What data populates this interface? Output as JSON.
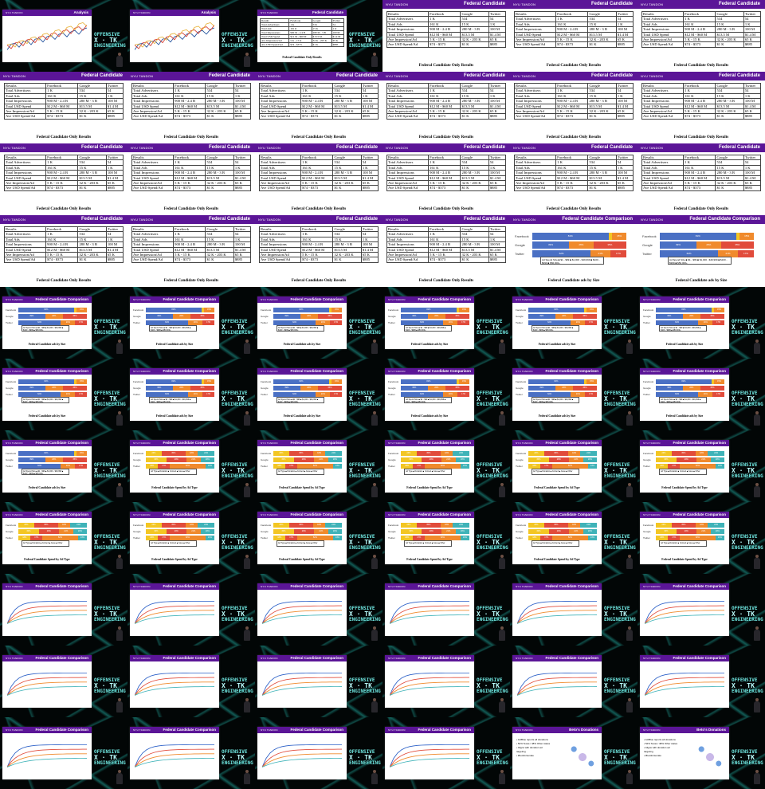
{
  "colors": {
    "header_purple": "#5b1597",
    "stage_teal": "#1ea096",
    "bar_blue": "#4a70c4",
    "bar_orange": "#f08a2c",
    "bar_yellow": "#f3c623",
    "bar_red": "#e14b3b",
    "bar_teal": "#3fb3b8"
  },
  "slide_kinds": {
    "analysis": {
      "title": "Analysis",
      "logo": "NYU TANDON"
    },
    "federal_table": {
      "title": "Federal Candidate",
      "logo": "NYU TANDON",
      "caption": "Federal Candidate Only Results",
      "rows": [
        [
          "Results",
          "Facebook",
          "Google",
          "Twitter"
        ],
        [
          "Total Advertisers",
          "1 K",
          "534",
          "54"
        ],
        [
          "Total Ads",
          "161 K",
          "15 K",
          "1 K"
        ],
        [
          "Total Impressions",
          "900 M - 2.4 B",
          "280 M - 3 B",
          "100 M"
        ],
        [
          "Total USD Spend",
          "$12 M - $60 M",
          "$13.5 M",
          "$1.4 M"
        ],
        [
          "Ave Impression/Ad",
          "5 K - 15 K",
          "32 K - 203 K",
          "65 K"
        ],
        [
          "Ave USD Spend/Ad",
          "$74 - $373",
          "$1 K",
          "$885"
        ]
      ]
    },
    "comparison_size": {
      "title": "Federal Candidate Comparison",
      "logo": "NYU TANDON",
      "caption": "Federal Candidate ads by Size",
      "platforms": [
        "Facebook",
        "Google",
        "Twitter"
      ],
      "segments": [
        [
          {
            "v": "81%",
            "c": "#4a70c4",
            "w": 81
          },
          {
            "v": "",
            "c": "#f3c623",
            "w": 4
          },
          {
            "v": "15%",
            "c": "#f08a2c",
            "w": 15
          }
        ],
        [
          {
            "v": "39%",
            "c": "#4a70c4",
            "w": 39
          },
          {
            "v": "26%",
            "c": "#f08a2c",
            "w": 26
          },
          {
            "v": "35%",
            "c": "#e14b3b",
            "w": 35
          }
        ],
        [
          {
            "v": "62%",
            "c": "#4a70c4",
            "w": 62
          },
          {
            "v": "21%",
            "c": "#f08a2c",
            "w": 21
          },
          {
            "v": "17%",
            "c": "#e14b3b",
            "w": 17
          }
        ]
      ],
      "legend": "Ad Spend Size  ■ $1 - $99  ■ $1,000 - $49,999  ■ $100 - $999  ■ $50,000+"
    },
    "comparison_type": {
      "title": "Federal Candidate Comparison",
      "logo": "NYU TANDON",
      "caption": "Federal Candidate Spend by Ad Type",
      "platforms": [
        "Facebook",
        "Google",
        "Twitter"
      ],
      "segments": [
        [
          {
            "v": "23%",
            "c": "#f3c623",
            "w": 23
          },
          {
            "v": "35%",
            "c": "#e14b3b",
            "w": 35
          },
          {
            "v": "18%",
            "c": "#f08a2c",
            "w": 18
          },
          {
            "v": "24%",
            "c": "#3fb3b8",
            "w": 24
          }
        ],
        [
          {
            "v": "30%",
            "c": "#f3c623",
            "w": 30
          },
          {
            "v": "29%",
            "c": "#e14b3b",
            "w": 29
          },
          {
            "v": "21%",
            "c": "#f08a2c",
            "w": 21
          },
          {
            "v": "20%",
            "c": "#3fb3b8",
            "w": 20
          }
        ],
        [
          {
            "v": "18%",
            "c": "#f3c623",
            "w": 18
          },
          {
            "v": "17%",
            "c": "#e14b3b",
            "w": 17
          },
          {
            "v": "52%",
            "c": "#f08a2c",
            "w": 52
          },
          {
            "v": "13%",
            "c": "#3fb3b8",
            "w": 13
          }
        ]
      ],
      "legend": "Ad Type  ■ Donation  ■ Content  ■ Issue  ■ Other"
    },
    "comparison_line": {
      "title": "Federal Candidate Comparison",
      "logo": "NYU TANDON"
    },
    "donations": {
      "title": "Beto's Donations",
      "logo": "NYU TANDON",
      "bullets": [
        "ActBlue reports all donations",
        "52% Texas / 48% Other states",
        "Aligns with donation ad targeting",
        "#betoforsenate"
      ]
    }
  },
  "stage_brand": {
    "line1": "OFFENSIVE",
    "line2": "X · TK",
    "line3": "ENGINEERING"
  },
  "frames": [
    {
      "k": "analysis",
      "s": 1
    },
    {
      "k": "analysis",
      "s": 1
    },
    {
      "k": "federal_table",
      "s": 1
    },
    {
      "k": "federal_table",
      "s": 0
    },
    {
      "k": "federal_table",
      "s": 0
    },
    {
      "k": "federal_table",
      "s": 0
    },
    {
      "k": "federal_table",
      "s": 0
    },
    {
      "k": "federal_table",
      "s": 0
    },
    {
      "k": "federal_table",
      "s": 0
    },
    {
      "k": "federal_table",
      "s": 0
    },
    {
      "k": "federal_table",
      "s": 0
    },
    {
      "k": "federal_table",
      "s": 0
    },
    {
      "k": "federal_table",
      "s": 0
    },
    {
      "k": "federal_table",
      "s": 0
    },
    {
      "k": "federal_table",
      "s": 0
    },
    {
      "k": "federal_table",
      "s": 0
    },
    {
      "k": "federal_table",
      "s": 0
    },
    {
      "k": "federal_table",
      "s": 0
    },
    {
      "k": "federal_table",
      "s": 0
    },
    {
      "k": "federal_table",
      "s": 0
    },
    {
      "k": "federal_table",
      "s": 0
    },
    {
      "k": "federal_table",
      "s": 0
    },
    {
      "k": "comparison_size",
      "s": 0
    },
    {
      "k": "comparison_size",
      "s": 0
    },
    {
      "k": "comparison_size",
      "s": 1
    },
    {
      "k": "comparison_size",
      "s": 1
    },
    {
      "k": "comparison_size",
      "s": 1
    },
    {
      "k": "comparison_size",
      "s": 1
    },
    {
      "k": "comparison_size",
      "s": 1
    },
    {
      "k": "comparison_size",
      "s": 1
    },
    {
      "k": "comparison_size",
      "s": 1
    },
    {
      "k": "comparison_size",
      "s": 1
    },
    {
      "k": "comparison_size",
      "s": 1
    },
    {
      "k": "comparison_size",
      "s": 1
    },
    {
      "k": "comparison_size",
      "s": 1
    },
    {
      "k": "comparison_size",
      "s": 1
    },
    {
      "k": "comparison_size",
      "s": 1
    },
    {
      "k": "comparison_type",
      "s": 1
    },
    {
      "k": "comparison_type",
      "s": 1
    },
    {
      "k": "comparison_type",
      "s": 1
    },
    {
      "k": "comparison_type",
      "s": 1
    },
    {
      "k": "comparison_type",
      "s": 1
    },
    {
      "k": "comparison_type",
      "s": 1
    },
    {
      "k": "comparison_type",
      "s": 1
    },
    {
      "k": "comparison_type",
      "s": 1
    },
    {
      "k": "comparison_type",
      "s": 1
    },
    {
      "k": "comparison_type",
      "s": 1
    },
    {
      "k": "comparison_type",
      "s": 1
    },
    {
      "k": "comparison_line",
      "s": 1
    },
    {
      "k": "comparison_line",
      "s": 1
    },
    {
      "k": "comparison_line",
      "s": 1
    },
    {
      "k": "comparison_line",
      "s": 1
    },
    {
      "k": "comparison_line",
      "s": 1
    },
    {
      "k": "comparison_line",
      "s": 1
    },
    {
      "k": "comparison_line",
      "s": 1
    },
    {
      "k": "comparison_line",
      "s": 1
    },
    {
      "k": "comparison_line",
      "s": 1
    },
    {
      "k": "comparison_line",
      "s": 1
    },
    {
      "k": "comparison_line",
      "s": 1
    },
    {
      "k": "comparison_line",
      "s": 1
    },
    {
      "k": "comparison_line",
      "s": 1
    },
    {
      "k": "comparison_line",
      "s": 1
    },
    {
      "k": "comparison_line",
      "s": 1
    },
    {
      "k": "comparison_line",
      "s": 1
    },
    {
      "k": "donations",
      "s": 1
    },
    {
      "k": "donations",
      "s": 1
    }
  ]
}
